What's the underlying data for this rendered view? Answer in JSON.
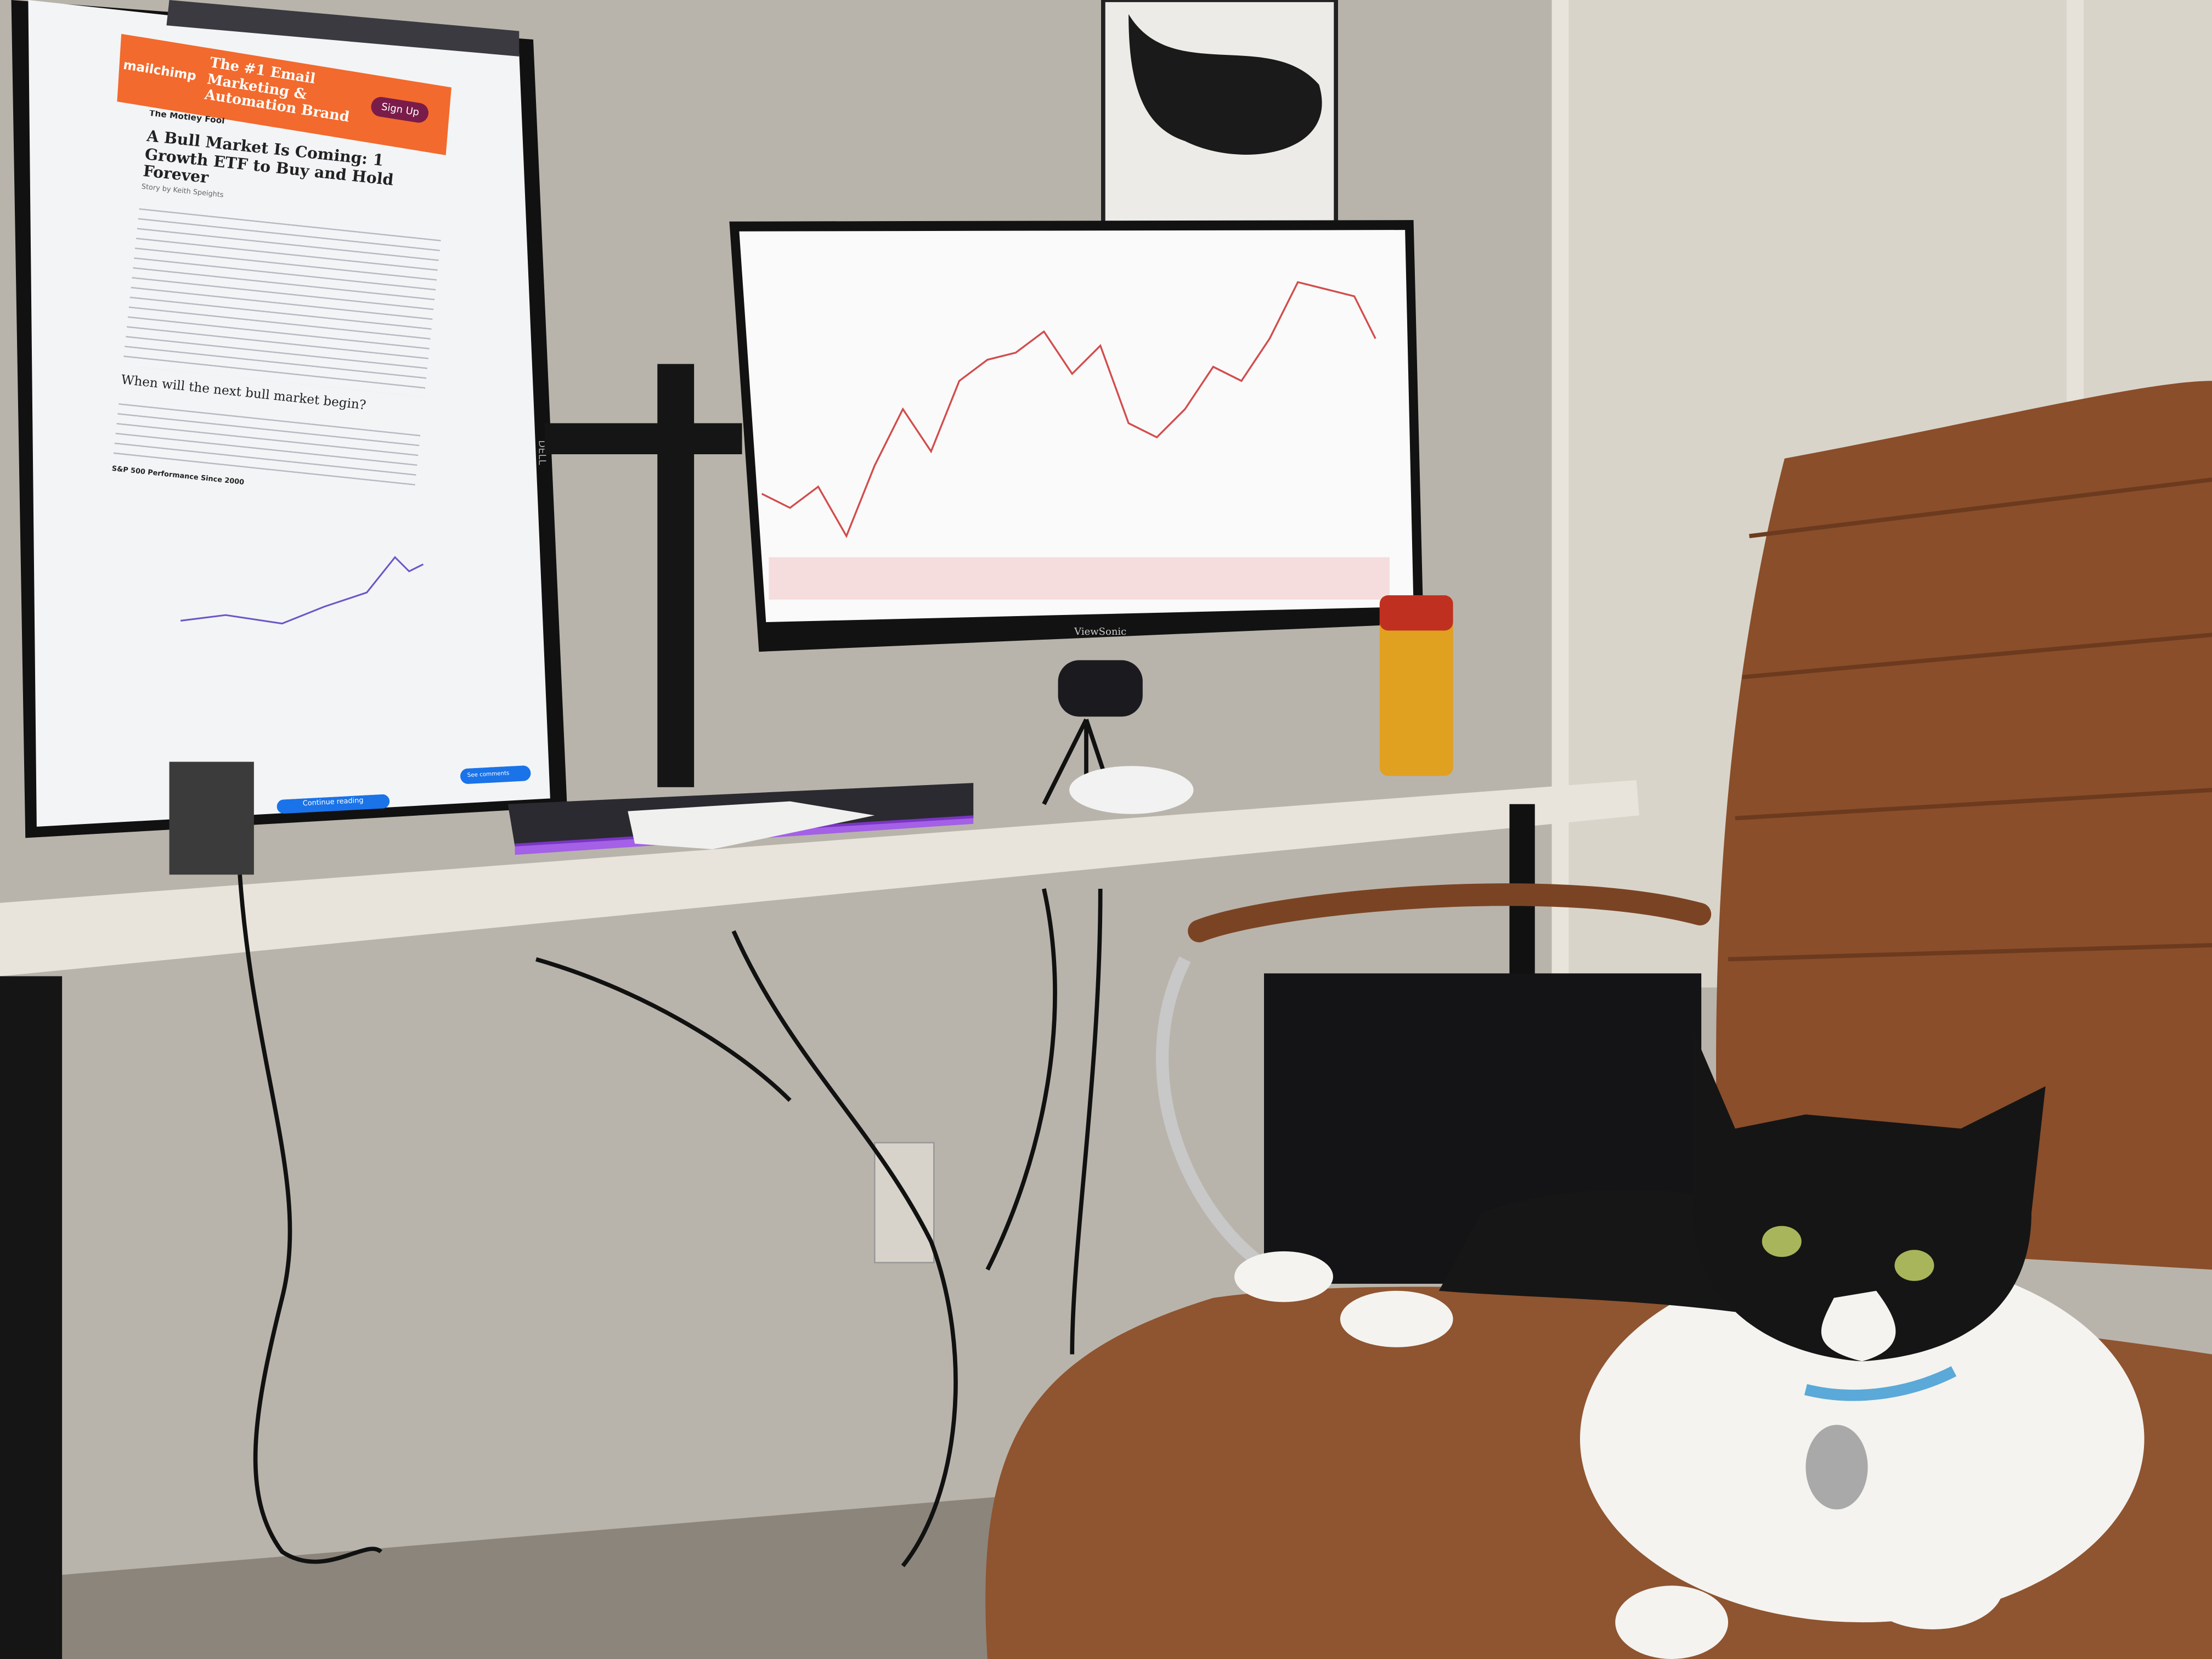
{
  "ad": {
    "brand": "mailchimp",
    "headline": "The #1 Email Marketing & Automation Brand",
    "button": "Sign Up"
  },
  "article": {
    "publisher": "The Motley Fool",
    "title": "A Bull Market Is Coming: 1 Growth ETF to Buy and Hold Forever",
    "byline": "Story by Keith Speights",
    "heading": "When will the next bull market begin?",
    "chart_title": "S&P 500 Performance Since 2000",
    "continue_button": "Continue reading",
    "comments_button": "See comments"
  },
  "monitors": {
    "left_brand": "DELL",
    "right_brand": "ViewSonic"
  }
}
